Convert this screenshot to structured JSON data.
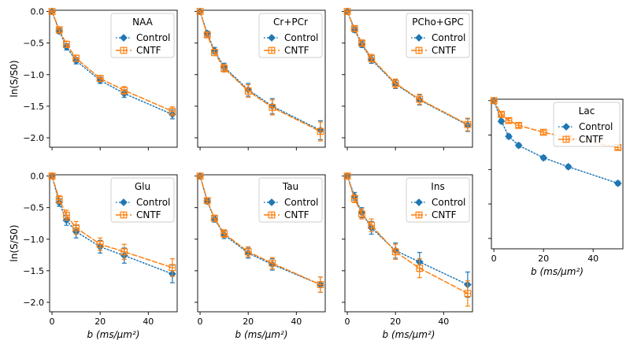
{
  "chart_data": {
    "type": "line",
    "shared": {
      "x": [
        0,
        3,
        6,
        10,
        20,
        30,
        50
      ],
      "xlabel": "b (ms/μm²)",
      "ylabel": "ln(S/S0)",
      "xlim": [
        -1,
        52
      ],
      "ylim": [
        -2.15,
        0.02
      ],
      "xticks": [
        0,
        20,
        40
      ],
      "yticks": [
        0.0,
        -0.5,
        -1.0,
        -1.5,
        -2.0
      ],
      "ytick_labels": [
        "0.0",
        "−0.5",
        "−1.0",
        "−1.5",
        "−2.0"
      ],
      "legend_loc": "top-right",
      "series_names": [
        "Control",
        "CNTF"
      ],
      "colors": {
        "control": "#1f77b4",
        "cntf": "#ff7f0e"
      }
    },
    "panels": [
      {
        "title": "NAA",
        "series": [
          {
            "name": "Control",
            "values": [
              0.0,
              -0.31,
              -0.56,
              -0.78,
              -1.09,
              -1.3,
              -1.63
            ],
            "err": [
              0.02,
              0.04,
              0.05,
              0.05,
              0.05,
              0.06,
              0.07
            ]
          },
          {
            "name": "CNTF",
            "values": [
              0.0,
              -0.29,
              -0.52,
              -0.74,
              -1.06,
              -1.25,
              -1.58
            ],
            "err": [
              0.02,
              0.04,
              0.05,
              0.05,
              0.05,
              0.06,
              0.07
            ]
          }
        ]
      },
      {
        "title": "Cr+PCr",
        "series": [
          {
            "name": "Control",
            "values": [
              0.0,
              -0.35,
              -0.62,
              -0.88,
              -1.24,
              -1.5,
              -1.88
            ],
            "err": [
              0.02,
              0.04,
              0.05,
              0.06,
              0.1,
              0.12,
              0.15
            ]
          },
          {
            "name": "CNTF",
            "values": [
              0.0,
              -0.37,
              -0.65,
              -0.9,
              -1.26,
              -1.52,
              -1.9
            ],
            "err": [
              0.02,
              0.04,
              0.05,
              0.06,
              0.1,
              0.12,
              0.15
            ]
          }
        ]
      },
      {
        "title": "PCho+GPC",
        "series": [
          {
            "name": "Control",
            "values": [
              0.0,
              -0.29,
              -0.52,
              -0.76,
              -1.15,
              -1.4,
              -1.8
            ],
            "err": [
              0.02,
              0.04,
              0.05,
              0.06,
              0.07,
              0.08,
              0.1
            ]
          },
          {
            "name": "CNTF",
            "values": [
              0.0,
              -0.27,
              -0.5,
              -0.74,
              -1.14,
              -1.39,
              -1.79
            ],
            "err": [
              0.02,
              0.04,
              0.05,
              0.06,
              0.07,
              0.08,
              0.1
            ]
          }
        ]
      },
      {
        "title": "Glu",
        "series": [
          {
            "name": "Control",
            "values": [
              0.0,
              -0.42,
              -0.7,
              -0.88,
              -1.12,
              -1.26,
              -1.55
            ],
            "err": [
              0.03,
              0.06,
              0.08,
              0.1,
              0.1,
              0.12,
              0.14
            ]
          },
          {
            "name": "CNTF",
            "values": [
              0.0,
              -0.37,
              -0.62,
              -0.82,
              -1.08,
              -1.2,
              -1.45
            ],
            "err": [
              0.03,
              0.06,
              0.08,
              0.1,
              0.1,
              0.12,
              0.14
            ]
          }
        ]
      },
      {
        "title": "Tau",
        "series": [
          {
            "name": "Control",
            "values": [
              0.0,
              -0.4,
              -0.68,
              -0.93,
              -1.22,
              -1.4,
              -1.72
            ],
            "err": [
              0.02,
              0.04,
              0.05,
              0.06,
              0.08,
              0.09,
              0.12
            ]
          },
          {
            "name": "CNTF",
            "values": [
              0.0,
              -0.39,
              -0.67,
              -0.91,
              -1.2,
              -1.38,
              -1.72
            ],
            "err": [
              0.02,
              0.04,
              0.05,
              0.06,
              0.08,
              0.09,
              0.12
            ]
          }
        ]
      },
      {
        "title": "Ins",
        "series": [
          {
            "name": "Control",
            "values": [
              0.0,
              -0.32,
              -0.58,
              -0.82,
              -1.18,
              -1.36,
              -1.72
            ],
            "err": [
              0.03,
              0.06,
              0.08,
              0.1,
              0.12,
              0.15,
              0.2
            ]
          },
          {
            "name": "CNTF",
            "values": [
              0.0,
              -0.36,
              -0.6,
              -0.78,
              -1.2,
              -1.46,
              -1.86
            ],
            "err": [
              0.03,
              0.06,
              0.08,
              0.1,
              0.12,
              0.15,
              0.2
            ]
          }
        ]
      },
      {
        "title": "Lac",
        "series": [
          {
            "name": "Control",
            "values": [
              0.0,
              -0.3,
              -0.52,
              -0.65,
              -0.83,
              -0.96,
              -1.2
            ],
            "err": [
              0.02,
              0.03,
              0.03,
              0.03,
              0.03,
              0.03,
              0.03
            ]
          },
          {
            "name": "CNTF",
            "values": [
              0.0,
              -0.2,
              -0.29,
              -0.36,
              -0.46,
              -0.54,
              -0.68
            ],
            "err": [
              0.02,
              0.03,
              0.03,
              0.03,
              0.03,
              0.03,
              0.03
            ]
          }
        ]
      }
    ]
  }
}
